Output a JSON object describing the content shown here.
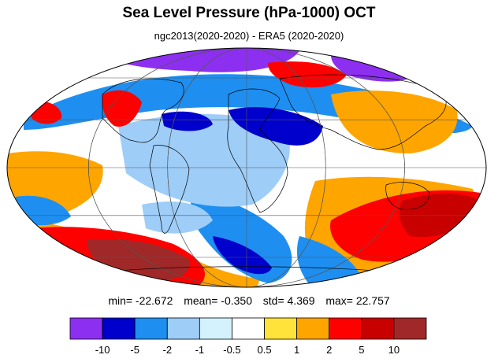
{
  "title": "Sea Level Pressure (hPa-1000) OCT",
  "subtitle": "ngc2013(2020-2020) - ERA5 (2020-2020)",
  "stats": {
    "min": "min= -22.672",
    "mean": "mean= -0.350",
    "std": "std= 4.369",
    "max": "max= 22.757"
  },
  "colorbar": {
    "colors": [
      "#8d2ff0",
      "#0000cd",
      "#1e8ff0",
      "#9ecdf8",
      "#d3f2fd",
      "#ffffff",
      "#ffe33a",
      "#ffa500",
      "#ff0000",
      "#c80000",
      "#a02828"
    ],
    "labels": [
      "-10",
      "-5",
      "-2",
      "-1",
      "-0.5",
      "0.5",
      "1",
      "2",
      "5",
      "10"
    ]
  },
  "map": {
    "projection": "mollweide",
    "palette": {
      "purple": "#8d2ff0",
      "blue": "#0000cd",
      "mid_blue": "#1e8ff0",
      "light_blue": "#9ecdf8",
      "pale_blue": "#d3f2fd",
      "white": "#ffffff",
      "yellow": "#ffe33a",
      "orange": "#ffa500",
      "red": "#ff0000",
      "dark_red": "#c80000",
      "brown": "#a02828"
    }
  }
}
